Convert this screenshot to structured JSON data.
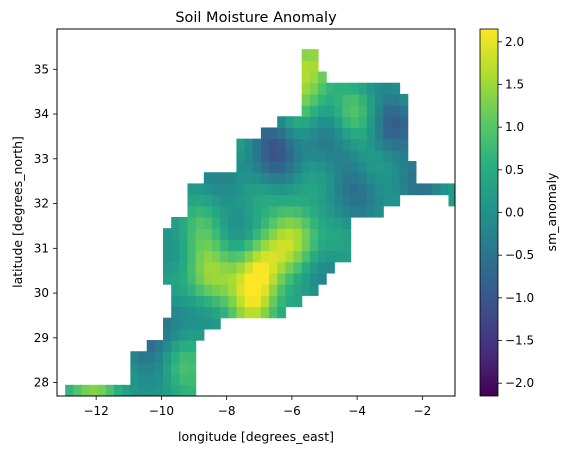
{
  "chart_data": {
    "type": "heatmap",
    "title": "Soil Moisture Anomaly",
    "xlabel": "longitude [degrees_east]",
    "ylabel": "latitude [degrees_north]",
    "xlim": [
      -13.2,
      -1.0
    ],
    "ylim": [
      27.7,
      35.9
    ],
    "xticks": [
      -12,
      -10,
      -8,
      -6,
      -4,
      -2
    ],
    "xtick_labels": [
      "−12",
      "−10",
      "−8",
      "−6",
      "−4",
      "−2"
    ],
    "yticks": [
      28,
      29,
      30,
      31,
      32,
      33,
      34,
      35
    ],
    "ytick_labels": [
      "28",
      "29",
      "30",
      "31",
      "32",
      "33",
      "34",
      "35"
    ],
    "colorbar": {
      "label": "sm_anomaly",
      "colormap": "viridis",
      "vmin": -2.15,
      "vmax": 2.15,
      "ticks": [
        -2.0,
        -1.5,
        -1.0,
        -0.5,
        0.0,
        0.5,
        1.0,
        1.5,
        2.0
      ],
      "tick_labels": [
        "−2.0",
        "−1.5",
        "−1.0",
        "−0.5",
        "0.0",
        "0.5",
        "1.0",
        "1.5",
        "2.0"
      ]
    },
    "grid": false,
    "grid_resolution_deg": 0.25,
    "region": {
      "row_mask": [
        {
          "lat": [
            35.05,
            35.35
          ],
          "lon": [
            -5.65,
            -5.15
          ]
        },
        {
          "lat": [
            34.8,
            35.05
          ],
          "lon": [
            -5.65,
            -4.9
          ]
        },
        {
          "lat": [
            34.55,
            34.8
          ],
          "lon": [
            -5.65,
            -2.7
          ]
        },
        {
          "lat": [
            34.05,
            34.55
          ],
          "lon": [
            -5.65,
            -2.45
          ]
        },
        {
          "lat": [
            33.8,
            34.05
          ],
          "lon": [
            -6.4,
            -2.45
          ]
        },
        {
          "lat": [
            33.55,
            33.8
          ],
          "lon": [
            -6.9,
            -2.45
          ]
        },
        {
          "lat": [
            33.05,
            33.55
          ],
          "lon": [
            -7.65,
            -2.45
          ]
        },
        {
          "lat": [
            32.8,
            33.05
          ],
          "lon": [
            -7.65,
            -2.2
          ]
        },
        {
          "lat": [
            32.55,
            32.8
          ],
          "lon": [
            -8.65,
            -2.2
          ]
        },
        {
          "lat": [
            32.3,
            32.55
          ],
          "lon": [
            -9.15,
            -1.0
          ]
        },
        {
          "lat": [
            32.05,
            32.3
          ],
          "lon": [
            -9.15,
            -2.7
          ]
        },
        {
          "lat": [
            31.8,
            32.05
          ],
          "lon": [
            -9.15,
            -3.2
          ]
        },
        {
          "lat": [
            31.55,
            31.8
          ],
          "lon": [
            -9.65,
            -4.2
          ]
        },
        {
          "lat": [
            30.8,
            31.55
          ],
          "lon": [
            -9.9,
            -4.2
          ]
        },
        {
          "lat": [
            30.55,
            30.8
          ],
          "lon": [
            -9.9,
            -4.7
          ]
        },
        {
          "lat": [
            30.3,
            30.55
          ],
          "lon": [
            -9.9,
            -4.95
          ]
        },
        {
          "lat": [
            30.05,
            30.3
          ],
          "lon": [
            -9.65,
            -5.2
          ]
        },
        {
          "lat": [
            29.8,
            30.05
          ],
          "lon": [
            -9.65,
            -5.7
          ]
        },
        {
          "lat": [
            29.55,
            29.8
          ],
          "lon": [
            -9.65,
            -6.2
          ]
        },
        {
          "lat": [
            29.3,
            29.55
          ],
          "lon": [
            -9.9,
            -8.2
          ]
        },
        {
          "lat": [
            29.05,
            29.3
          ],
          "lon": [
            -9.9,
            -8.7
          ]
        },
        {
          "lat": [
            28.8,
            29.05
          ],
          "lon": [
            -10.4,
            -8.95
          ]
        },
        {
          "lat": [
            28.55,
            28.8
          ],
          "lon": [
            -10.9,
            -8.95
          ]
        },
        {
          "lat": [
            27.95,
            28.55
          ],
          "lon": [
            -10.9,
            -8.95
          ]
        },
        {
          "lat": [
            27.7,
            27.95
          ],
          "lon": [
            -12.9,
            -8.95
          ]
        }
      ],
      "lower_mask_lon": [
        -1.2,
        -1.0
      ],
      "lower_mask_lat": [
        32.05,
        32.3
      ]
    },
    "anomaly_features": [
      {
        "lon": -7.15,
        "lat": 29.95,
        "value": 2.0
      },
      {
        "lon": -5.9,
        "lat": 31.35,
        "value": 1.6
      },
      {
        "lon": -6.9,
        "lat": 30.7,
        "value": 1.2
      },
      {
        "lon": -8.55,
        "lat": 30.25,
        "value": 1.0
      },
      {
        "lon": -8.8,
        "lat": 31.1,
        "value": 0.9
      },
      {
        "lon": -5.45,
        "lat": 35.1,
        "value": 1.3
      },
      {
        "lon": -5.6,
        "lat": 34.4,
        "value": 1.1
      },
      {
        "lon": -4.1,
        "lat": 33.9,
        "value": 0.8
      },
      {
        "lon": -11.95,
        "lat": 27.8,
        "value": 1.4
      },
      {
        "lon": -9.4,
        "lat": 28.15,
        "value": 0.9
      },
      {
        "lon": -6.55,
        "lat": 33.3,
        "value": -0.9
      },
      {
        "lon": -5.2,
        "lat": 33.8,
        "value": -0.55
      },
      {
        "lon": -4.2,
        "lat": 32.5,
        "value": -0.45
      },
      {
        "lon": -3.0,
        "lat": 33.8,
        "value": -0.7
      },
      {
        "lon": -9.7,
        "lat": 29.35,
        "value": -0.4
      },
      {
        "lon": -10.6,
        "lat": 28.65,
        "value": -0.6
      },
      {
        "lon": -2.1,
        "lat": 32.55,
        "value": -0.3
      }
    ],
    "background_value": 0.05
  }
}
